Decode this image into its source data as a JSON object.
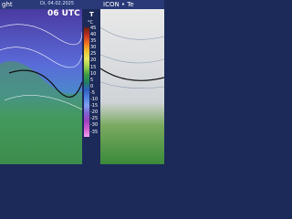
{
  "left_title": "ght",
  "date": "Di, 04.02.2025",
  "time": "06 UTC",
  "right_title": "ICON • Te",
  "legend": {
    "variable": "T",
    "unit": "°C",
    "labels": [
      "45",
      "40",
      "35",
      "30",
      "25",
      "20",
      "15",
      "10",
      "5",
      "0",
      "-5",
      "-10",
      "-15",
      "-20",
      "-25",
      "-30",
      "-35"
    ]
  }
}
